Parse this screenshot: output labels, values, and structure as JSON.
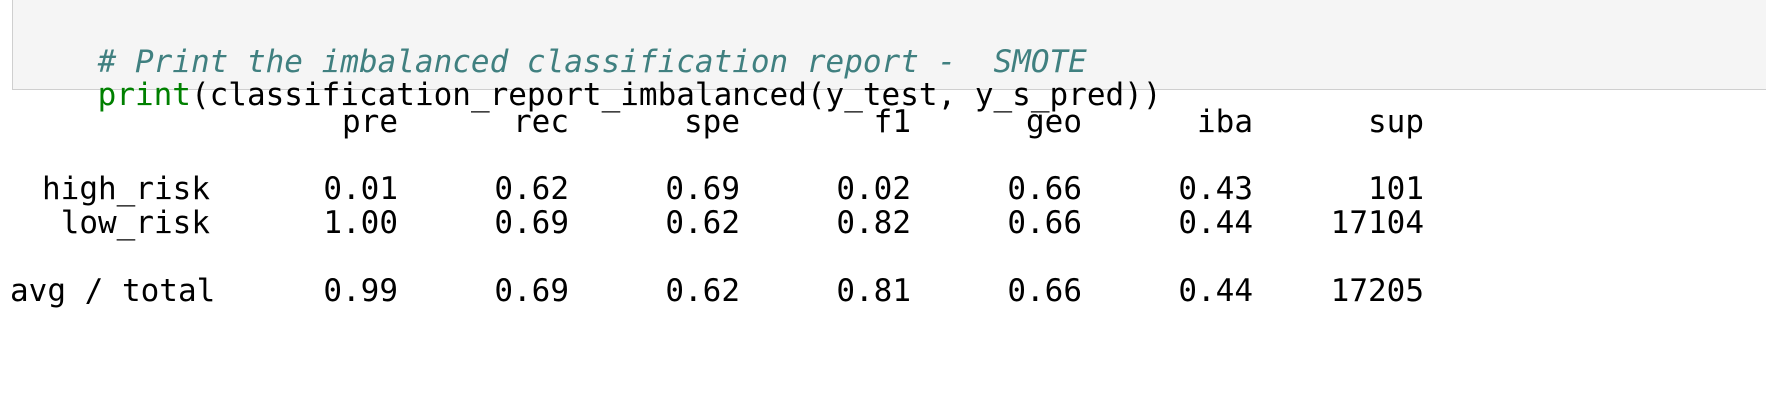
{
  "code": {
    "comment": "# Print the imbalanced classification report -  SMOTE",
    "fn": "print",
    "args": "(classification_report_imbalanced(y_test, y_s_pred))"
  },
  "report": {
    "headers": [
      "pre",
      "rec",
      "spe",
      "f1",
      "geo",
      "iba",
      "sup"
    ],
    "rows": [
      {
        "label": "high_risk",
        "values": [
          "0.01",
          "0.62",
          "0.69",
          "0.02",
          "0.66",
          "0.43",
          "101"
        ]
      },
      {
        "label": "low_risk",
        "values": [
          "1.00",
          "0.69",
          "0.62",
          "0.82",
          "0.66",
          "0.44",
          "17104"
        ]
      },
      {
        "label": "avg / total",
        "values": [
          "0.99",
          "0.69",
          "0.62",
          "0.81",
          "0.66",
          "0.44",
          "17205"
        ]
      }
    ]
  }
}
